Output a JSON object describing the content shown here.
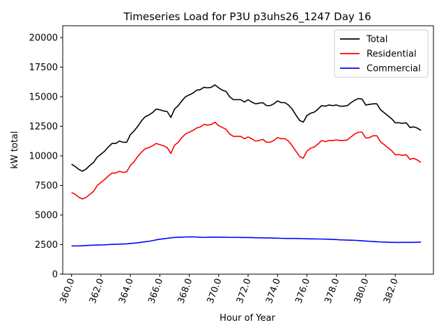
{
  "chart_data": {
    "type": "line",
    "title": "Timeseries Load for P3U p3uhs26_1247  Day 16",
    "xlabel": "Hour of Year",
    "ylabel": "kW total",
    "xlim": [
      359.4,
      384.6
    ],
    "ylim": [
      0,
      21000
    ],
    "x_ticks": [
      360,
      362,
      364,
      366,
      368,
      370,
      372,
      374,
      376,
      378,
      380,
      382
    ],
    "x_tick_labels": [
      "360.0",
      "362.0",
      "364.0",
      "366.0",
      "368.0",
      "370.0",
      "372.0",
      "374.0",
      "376.0",
      "378.0",
      "380.0",
      "382.0"
    ],
    "y_ticks": [
      0,
      2500,
      5000,
      7500,
      10000,
      12500,
      15000,
      17500,
      20000
    ],
    "y_tick_labels": [
      "0",
      "2500",
      "5000",
      "7500",
      "10000",
      "12500",
      "15000",
      "17500",
      "20000"
    ],
    "grid": false,
    "legend_position": "top-right",
    "x_start": 360,
    "x_step": 0.25,
    "series": [
      {
        "name": "Total",
        "color": "#000000",
        "values": [
          9300,
          9100,
          8850,
          8700,
          8900,
          9200,
          9450,
          9900,
          10150,
          10400,
          10750,
          11050,
          11050,
          11250,
          11150,
          11150,
          11800,
          12100,
          12500,
          12950,
          13300,
          13450,
          13650,
          13950,
          13900,
          13800,
          13750,
          13250,
          13950,
          14250,
          14650,
          15000,
          15150,
          15300,
          15550,
          15600,
          15800,
          15750,
          15800,
          16000,
          15750,
          15550,
          15450,
          15000,
          14750,
          14750,
          14750,
          14550,
          14750,
          14550,
          14400,
          14450,
          14500,
          14250,
          14250,
          14400,
          14650,
          14500,
          14500,
          14300,
          13950,
          13450,
          13000,
          12850,
          13400,
          13600,
          13700,
          13950,
          14250,
          14200,
          14300,
          14250,
          14300,
          14200,
          14200,
          14250,
          14500,
          14700,
          14850,
          14800,
          14300,
          14350,
          14400,
          14400,
          13900,
          13650,
          13400,
          13150,
          12800,
          12800,
          12750,
          12800,
          12400,
          12450,
          12350,
          12150
        ]
      },
      {
        "name": "Residential",
        "color": "#ff0000",
        "values": [
          6900,
          6750,
          6500,
          6350,
          6500,
          6750,
          7000,
          7500,
          7750,
          8000,
          8300,
          8550,
          8550,
          8700,
          8600,
          8650,
          9200,
          9500,
          9950,
          10300,
          10600,
          10700,
          10850,
          11050,
          10950,
          10850,
          10700,
          10200,
          10900,
          11150,
          11550,
          11850,
          12000,
          12150,
          12350,
          12450,
          12650,
          12600,
          12650,
          12850,
          12550,
          12400,
          12250,
          11850,
          11650,
          11650,
          11650,
          11450,
          11600,
          11450,
          11250,
          11300,
          11400,
          11150,
          11150,
          11300,
          11550,
          11450,
          11450,
          11250,
          10850,
          10400,
          9950,
          9800,
          10400,
          10650,
          10750,
          11000,
          11300,
          11200,
          11300,
          11300,
          11350,
          11300,
          11300,
          11350,
          11600,
          11850,
          12000,
          12000,
          11500,
          11550,
          11700,
          11700,
          11200,
          10950,
          10700,
          10450,
          10100,
          10100,
          10050,
          10100,
          9700,
          9800,
          9650,
          9450
        ]
      },
      {
        "name": "Commercial",
        "color": "#0000ff",
        "values": [
          2380,
          2390,
          2390,
          2400,
          2420,
          2440,
          2450,
          2460,
          2470,
          2480,
          2500,
          2520,
          2520,
          2540,
          2550,
          2560,
          2590,
          2620,
          2650,
          2700,
          2740,
          2780,
          2830,
          2900,
          2950,
          2990,
          3030,
          3070,
          3100,
          3120,
          3130,
          3140,
          3150,
          3150,
          3140,
          3120,
          3110,
          3120,
          3130,
          3130,
          3130,
          3120,
          3120,
          3110,
          3110,
          3110,
          3100,
          3100,
          3090,
          3090,
          3080,
          3080,
          3070,
          3060,
          3060,
          3050,
          3040,
          3030,
          3020,
          3020,
          3020,
          3020,
          3010,
          3000,
          2990,
          2980,
          2980,
          2970,
          2970,
          2960,
          2950,
          2940,
          2920,
          2900,
          2890,
          2880,
          2870,
          2860,
          2840,
          2820,
          2800,
          2780,
          2760,
          2740,
          2720,
          2710,
          2700,
          2690,
          2690,
          2680,
          2690,
          2690,
          2690,
          2690,
          2700,
          2710
        ]
      }
    ]
  }
}
